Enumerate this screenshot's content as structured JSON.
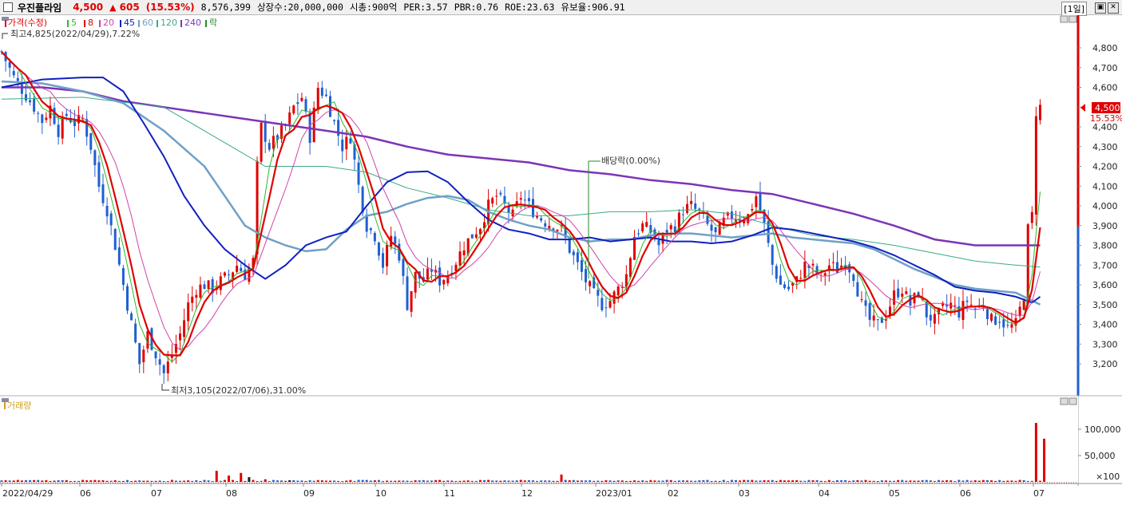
{
  "header": {
    "stock_name": "우진플라임",
    "price": "4,500",
    "change_arrow": "▲",
    "change": "605",
    "change_pct": "(15.53%)",
    "volume": "8,576,399",
    "shares": "상장수:20,000,000",
    "market_cap": "시총:900억",
    "per": "PER:3.57",
    "pbr": "PBR:0.76",
    "roe": "ROE:23.63",
    "float": "유보율:906.91",
    "period": "[1일]"
  },
  "legend": {
    "price": "가격(수정)",
    "ma5": "5",
    "ma8": "8",
    "ma20": "20",
    "ma45": "45",
    "ma60": "60",
    "ma120": "120",
    "ma240": "240",
    "ex": "락"
  },
  "annotations": {
    "high": "최고4,825(2022/04/29),7.22%",
    "low": "최저3,105(2022/07/06),31.00%",
    "dividend": "배당락(0.00%)",
    "last_price": "4,500",
    "last_pct": "15.53%"
  },
  "volume_panel": {
    "label": "거래량",
    "unit_tick": "×100"
  },
  "colors": {
    "up": "#e00000",
    "down": "#1f5fd1",
    "ma5": "#2db82d",
    "ma8": "#e00000",
    "ma20": "#cc44aa",
    "ma45": "#1020c0",
    "ma60": "#6fa0c8",
    "ma120": "#3aaa8a",
    "ma240": "#7b35b5"
  },
  "chart_data": {
    "type": "candlestick",
    "y_ticks": [
      "4,800",
      "4,700",
      "4,600",
      "4,500",
      "4,400",
      "4,300",
      "4,200",
      "4,100",
      "4,000",
      "3,900",
      "3,800",
      "3,700",
      "3,600",
      "3,500",
      "3,400",
      "3,300",
      "3,200"
    ],
    "ylim": [
      3100,
      4900
    ],
    "x_ticks": [
      "2022/04/29",
      "06",
      "07",
      "08",
      "09",
      "10",
      "11",
      "12",
      "2023/01",
      "02",
      "03",
      "04",
      "05",
      "06",
      "07"
    ],
    "volume_ticks": [
      "100,000",
      "50,000"
    ],
    "price_track": [
      [
        0,
        4780
      ],
      [
        3,
        4650
      ],
      [
        6,
        4560
      ],
      [
        8,
        4500
      ],
      [
        10,
        4430
      ],
      [
        12,
        4500
      ],
      [
        14,
        4380
      ],
      [
        16,
        4460
      ],
      [
        18,
        4420
      ],
      [
        20,
        4440
      ],
      [
        22,
        4300
      ],
      [
        24,
        4100
      ],
      [
        26,
        3980
      ],
      [
        28,
        3800
      ],
      [
        30,
        3600
      ],
      [
        32,
        3400
      ],
      [
        34,
        3200
      ],
      [
        36,
        3350
      ],
      [
        38,
        3250
      ],
      [
        40,
        3150
      ],
      [
        42,
        3250
      ],
      [
        44,
        3350
      ],
      [
        46,
        3500
      ],
      [
        48,
        3580
      ],
      [
        50,
        3600
      ],
      [
        52,
        3580
      ],
      [
        54,
        3620
      ],
      [
        56,
        3650
      ],
      [
        58,
        3700
      ],
      [
        60,
        3650
      ],
      [
        62,
        3720
      ],
      [
        63,
        4200
      ],
      [
        64,
        4400
      ],
      [
        66,
        4300
      ],
      [
        68,
        4350
      ],
      [
        70,
        4400
      ],
      [
        72,
        4500
      ],
      [
        74,
        4550
      ],
      [
        76,
        4350
      ],
      [
        78,
        4600
      ],
      [
        80,
        4550
      ],
      [
        82,
        4420
      ],
      [
        84,
        4300
      ],
      [
        86,
        4350
      ],
      [
        88,
        4100
      ],
      [
        90,
        3900
      ],
      [
        92,
        3850
      ],
      [
        94,
        3700
      ],
      [
        96,
        3850
      ],
      [
        98,
        3750
      ],
      [
        100,
        3500
      ],
      [
        102,
        3650
      ],
      [
        104,
        3620
      ],
      [
        106,
        3680
      ],
      [
        108,
        3620
      ],
      [
        110,
        3650
      ],
      [
        112,
        3720
      ],
      [
        114,
        3800
      ],
      [
        116,
        3850
      ],
      [
        118,
        3900
      ],
      [
        120,
        4000
      ],
      [
        122,
        4050
      ],
      [
        124,
        4000
      ],
      [
        126,
        3950
      ],
      [
        128,
        4050
      ],
      [
        130,
        4000
      ],
      [
        132,
        3950
      ],
      [
        134,
        3920
      ],
      [
        136,
        3900
      ],
      [
        138,
        3880
      ],
      [
        140,
        3780
      ],
      [
        142,
        3700
      ],
      [
        144,
        3620
      ],
      [
        146,
        3550
      ],
      [
        148,
        3500
      ],
      [
        150,
        3520
      ],
      [
        152,
        3580
      ],
      [
        154,
        3650
      ],
      [
        156,
        3850
      ],
      [
        158,
        3900
      ],
      [
        160,
        3870
      ],
      [
        162,
        3800
      ],
      [
        164,
        3880
      ],
      [
        166,
        3900
      ],
      [
        168,
        3980
      ],
      [
        170,
        4000
      ],
      [
        172,
        3960
      ],
      [
        174,
        3900
      ],
      [
        176,
        3850
      ],
      [
        178,
        3920
      ],
      [
        180,
        3950
      ],
      [
        182,
        3940
      ],
      [
        184,
        3950
      ],
      [
        186,
        4050
      ],
      [
        188,
        3900
      ],
      [
        190,
        3700
      ],
      [
        192,
        3600
      ],
      [
        194,
        3580
      ],
      [
        196,
        3620
      ],
      [
        198,
        3700
      ],
      [
        200,
        3680
      ],
      [
        202,
        3640
      ],
      [
        204,
        3700
      ],
      [
        206,
        3680
      ],
      [
        208,
        3720
      ],
      [
        210,
        3650
      ],
      [
        212,
        3500
      ],
      [
        214,
        3420
      ],
      [
        216,
        3400
      ],
      [
        218,
        3450
      ],
      [
        220,
        3550
      ],
      [
        222,
        3580
      ],
      [
        224,
        3500
      ],
      [
        226,
        3560
      ],
      [
        228,
        3450
      ],
      [
        230,
        3420
      ],
      [
        232,
        3480
      ],
      [
        234,
        3500
      ],
      [
        236,
        3460
      ],
      [
        238,
        3520
      ],
      [
        240,
        3480
      ],
      [
        242,
        3500
      ],
      [
        244,
        3420
      ],
      [
        246,
        3430
      ],
      [
        248,
        3380
      ],
      [
        250,
        3400
      ],
      [
        252,
        3550
      ],
      [
        253,
        3880
      ],
      [
        254,
        3950
      ],
      [
        255,
        4480
      ],
      [
        256,
        4500
      ]
    ],
    "moving_averages": {
      "ma45": [
        [
          0,
          4600
        ],
        [
          10,
          4640
        ],
        [
          20,
          4650
        ],
        [
          25,
          4650
        ],
        [
          30,
          4580
        ],
        [
          35,
          4420
        ],
        [
          40,
          4250
        ],
        [
          45,
          4050
        ],
        [
          50,
          3900
        ],
        [
          55,
          3780
        ],
        [
          60,
          3700
        ],
        [
          65,
          3630
        ],
        [
          70,
          3700
        ],
        [
          75,
          3800
        ],
        [
          80,
          3840
        ],
        [
          85,
          3870
        ],
        [
          90,
          4000
        ],
        [
          95,
          4120
        ],
        [
          100,
          4170
        ],
        [
          105,
          4175
        ],
        [
          110,
          4120
        ],
        [
          115,
          4020
        ],
        [
          120,
          3930
        ],
        [
          125,
          3880
        ],
        [
          130,
          3860
        ],
        [
          135,
          3830
        ],
        [
          140,
          3830
        ],
        [
          145,
          3840
        ],
        [
          150,
          3820
        ],
        [
          155,
          3830
        ],
        [
          160,
          3840
        ],
        [
          165,
          3820
        ],
        [
          170,
          3820
        ],
        [
          175,
          3810
        ],
        [
          180,
          3820
        ],
        [
          185,
          3850
        ],
        [
          190,
          3890
        ],
        [
          195,
          3880
        ],
        [
          200,
          3860
        ],
        [
          205,
          3840
        ],
        [
          210,
          3820
        ],
        [
          215,
          3790
        ],
        [
          220,
          3750
        ],
        [
          225,
          3700
        ],
        [
          230,
          3650
        ],
        [
          235,
          3590
        ],
        [
          240,
          3570
        ],
        [
          245,
          3560
        ],
        [
          250,
          3540
        ],
        [
          254,
          3510
        ],
        [
          256,
          3540
        ]
      ],
      "ma60": [
        [
          0,
          4630
        ],
        [
          10,
          4620
        ],
        [
          20,
          4580
        ],
        [
          30,
          4520
        ],
        [
          40,
          4380
        ],
        [
          50,
          4200
        ],
        [
          55,
          4050
        ],
        [
          60,
          3900
        ],
        [
          65,
          3840
        ],
        [
          70,
          3800
        ],
        [
          75,
          3770
        ],
        [
          80,
          3780
        ],
        [
          85,
          3880
        ],
        [
          90,
          3950
        ],
        [
          95,
          3970
        ],
        [
          100,
          4010
        ],
        [
          105,
          4040
        ],
        [
          110,
          4050
        ],
        [
          115,
          4030
        ],
        [
          120,
          3970
        ],
        [
          125,
          3930
        ],
        [
          130,
          3900
        ],
        [
          135,
          3880
        ],
        [
          140,
          3840
        ],
        [
          145,
          3820
        ],
        [
          150,
          3830
        ],
        [
          155,
          3830
        ],
        [
          160,
          3850
        ],
        [
          165,
          3860
        ],
        [
          170,
          3860
        ],
        [
          175,
          3850
        ],
        [
          180,
          3840
        ],
        [
          185,
          3850
        ],
        [
          190,
          3860
        ],
        [
          195,
          3840
        ],
        [
          200,
          3830
        ],
        [
          205,
          3820
        ],
        [
          210,
          3810
        ],
        [
          215,
          3780
        ],
        [
          220,
          3730
        ],
        [
          225,
          3680
        ],
        [
          230,
          3640
        ],
        [
          235,
          3600
        ],
        [
          240,
          3580
        ],
        [
          245,
          3570
        ],
        [
          250,
          3560
        ],
        [
          256,
          3500
        ]
      ],
      "ma120": [
        [
          0,
          4540
        ],
        [
          20,
          4550
        ],
        [
          40,
          4500
        ],
        [
          55,
          4320
        ],
        [
          65,
          4200
        ],
        [
          80,
          4200
        ],
        [
          90,
          4170
        ],
        [
          100,
          4090
        ],
        [
          110,
          4040
        ],
        [
          120,
          3980
        ],
        [
          130,
          3950
        ],
        [
          140,
          3950
        ],
        [
          150,
          3970
        ],
        [
          160,
          3970
        ],
        [
          170,
          3980
        ],
        [
          180,
          3960
        ],
        [
          190,
          3900
        ],
        [
          200,
          3850
        ],
        [
          210,
          3830
        ],
        [
          220,
          3800
        ],
        [
          230,
          3760
        ],
        [
          240,
          3720
        ],
        [
          250,
          3700
        ],
        [
          256,
          3690
        ]
      ],
      "ma240": [
        [
          0,
          4600
        ],
        [
          10,
          4600
        ],
        [
          20,
          4580
        ],
        [
          30,
          4530
        ],
        [
          40,
          4500
        ],
        [
          50,
          4470
        ],
        [
          60,
          4440
        ],
        [
          70,
          4410
        ],
        [
          80,
          4380
        ],
        [
          90,
          4350
        ],
        [
          100,
          4300
        ],
        [
          110,
          4260
        ],
        [
          120,
          4240
        ],
        [
          130,
          4220
        ],
        [
          140,
          4180
        ],
        [
          150,
          4160
        ],
        [
          160,
          4130
        ],
        [
          170,
          4110
        ],
        [
          180,
          4080
        ],
        [
          190,
          4060
        ],
        [
          200,
          4010
        ],
        [
          210,
          3960
        ],
        [
          220,
          3900
        ],
        [
          230,
          3830
        ],
        [
          240,
          3800
        ],
        [
          250,
          3800
        ],
        [
          256,
          3800
        ]
      ]
    },
    "volume_spikes": [
      [
        53,
        21000
      ],
      [
        56,
        12000
      ],
      [
        59,
        17000
      ],
      [
        61,
        9000
      ],
      [
        65,
        5000
      ],
      [
        71,
        3000
      ],
      [
        108,
        3500
      ],
      [
        138,
        14000
      ],
      [
        255,
        112000
      ],
      [
        257,
        82000
      ]
    ]
  }
}
